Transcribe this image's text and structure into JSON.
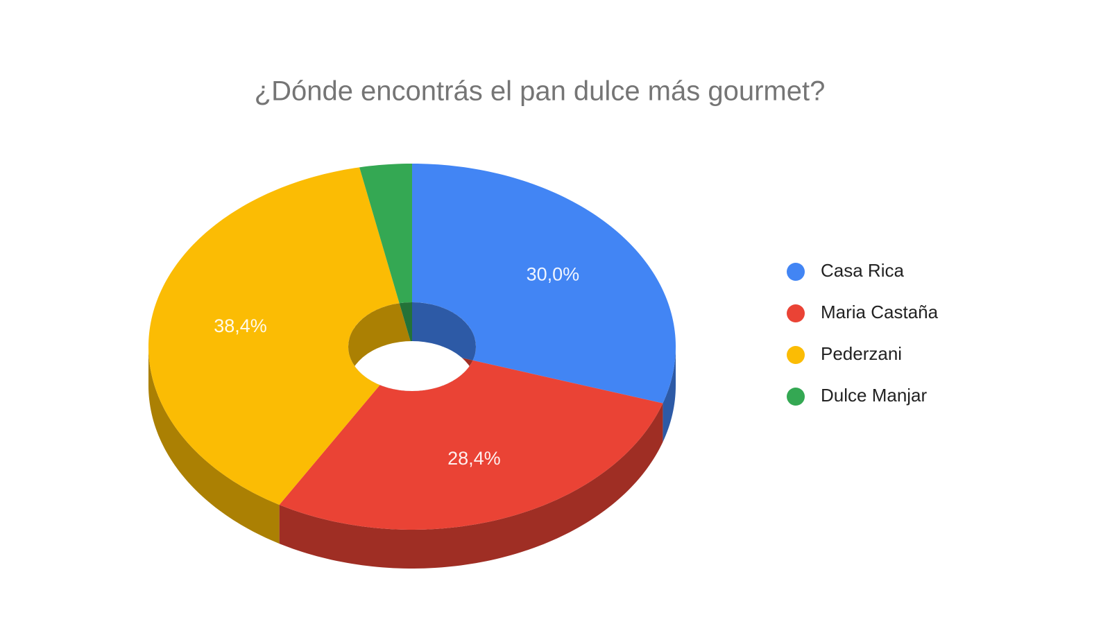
{
  "chart_data": {
    "type": "pie3d-donut",
    "title": "¿Dónde encontrás el pan dulce más gourmet?",
    "categories": [
      "Casa Rica",
      "Maria Castaña",
      "Pederzani",
      "Dulce Manjar"
    ],
    "values": [
      30.0,
      28.4,
      38.4,
      3.2
    ],
    "value_labels": [
      "30,0%",
      "28,4%",
      "38,4%",
      null
    ],
    "colors": [
      "#4285f4",
      "#ea4335",
      "#fbbc04",
      "#34a853"
    ],
    "legend": "right"
  }
}
